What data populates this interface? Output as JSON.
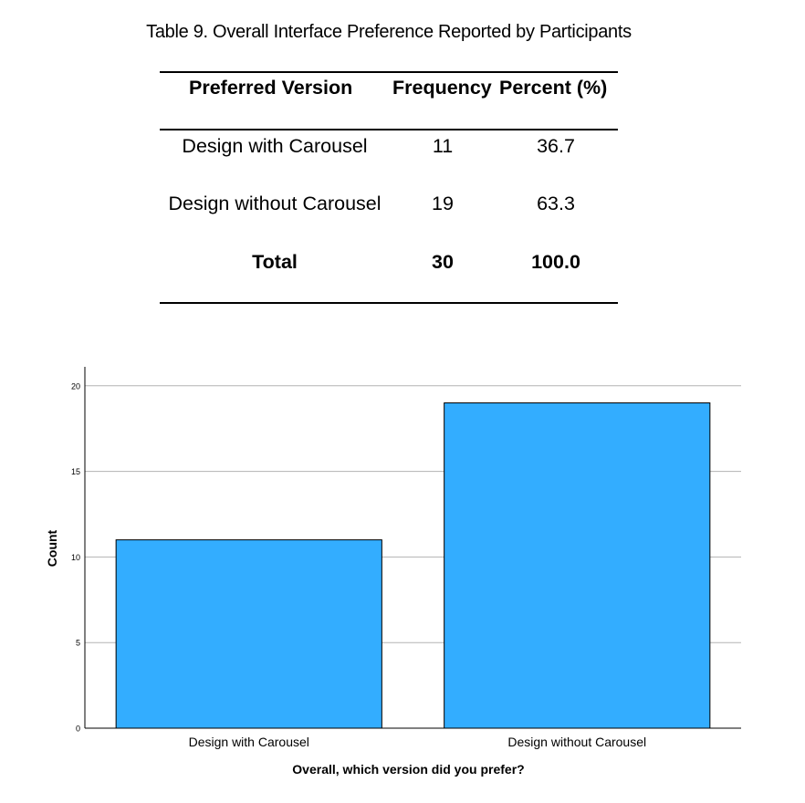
{
  "table": {
    "caption": "Table 9. Overall Interface Preference Reported by Participants",
    "headers": [
      "Preferred Version",
      "Frequency",
      "Percent (%)"
    ],
    "rows": [
      [
        "Design with Carousel",
        "11",
        "36.7"
      ],
      [
        "Design without Carousel",
        "19",
        "63.3"
      ]
    ],
    "total": [
      "Total",
      "30",
      "100.0"
    ]
  },
  "chart_data": {
    "type": "bar",
    "categories": [
      "Design with Carousel",
      "Design without Carousel"
    ],
    "values": [
      11,
      19
    ],
    "xlabel": "Overall, which version did you prefer?",
    "ylabel": "Count",
    "ylim": [
      0,
      21
    ],
    "yticks": [
      0,
      5,
      10,
      15,
      20
    ],
    "grid": true,
    "bar_color": "#33adff",
    "bar_edge_color": "#000000"
  }
}
